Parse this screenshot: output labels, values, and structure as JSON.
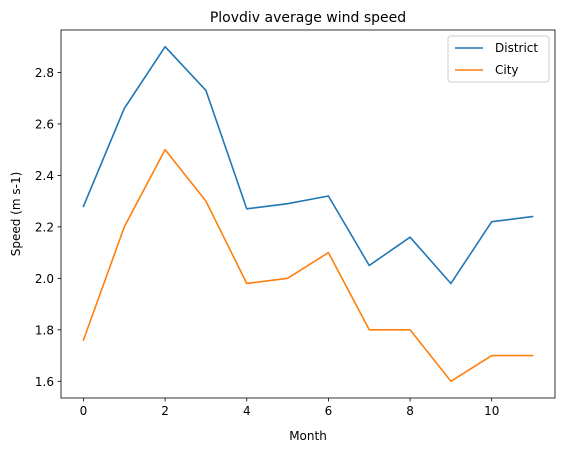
{
  "chart_data": {
    "type": "line",
    "title": "Plovdiv average wind speed",
    "xlabel": "Month",
    "ylabel": "Speed (m s-1)",
    "x": [
      0,
      1,
      2,
      3,
      4,
      5,
      6,
      7,
      8,
      9,
      10,
      11
    ],
    "xlim": [
      -0.55,
      11.55
    ],
    "ylim": [
      1.535,
      2.965
    ],
    "xticks": [
      0,
      2,
      4,
      6,
      8,
      10
    ],
    "xtick_labels": [
      "0",
      "2",
      "4",
      "6",
      "8",
      "10"
    ],
    "yticks": [
      1.6,
      1.8,
      2.0,
      2.2,
      2.4,
      2.6,
      2.8
    ],
    "ytick_labels": [
      "1.6",
      "1.8",
      "2.0",
      "2.2",
      "2.4",
      "2.6",
      "2.8"
    ],
    "grid": false,
    "legend_position": "top-right",
    "series": [
      {
        "name": "District",
        "color": "#1f77b4",
        "values": [
          2.28,
          2.66,
          2.9,
          2.73,
          2.27,
          2.29,
          2.32,
          2.05,
          2.16,
          1.98,
          2.22,
          2.24
        ]
      },
      {
        "name": "City",
        "color": "#ff7f0e",
        "values": [
          1.76,
          2.2,
          2.5,
          2.3,
          1.98,
          2.0,
          2.1,
          1.8,
          1.8,
          1.6,
          1.7,
          1.7
        ]
      }
    ]
  }
}
